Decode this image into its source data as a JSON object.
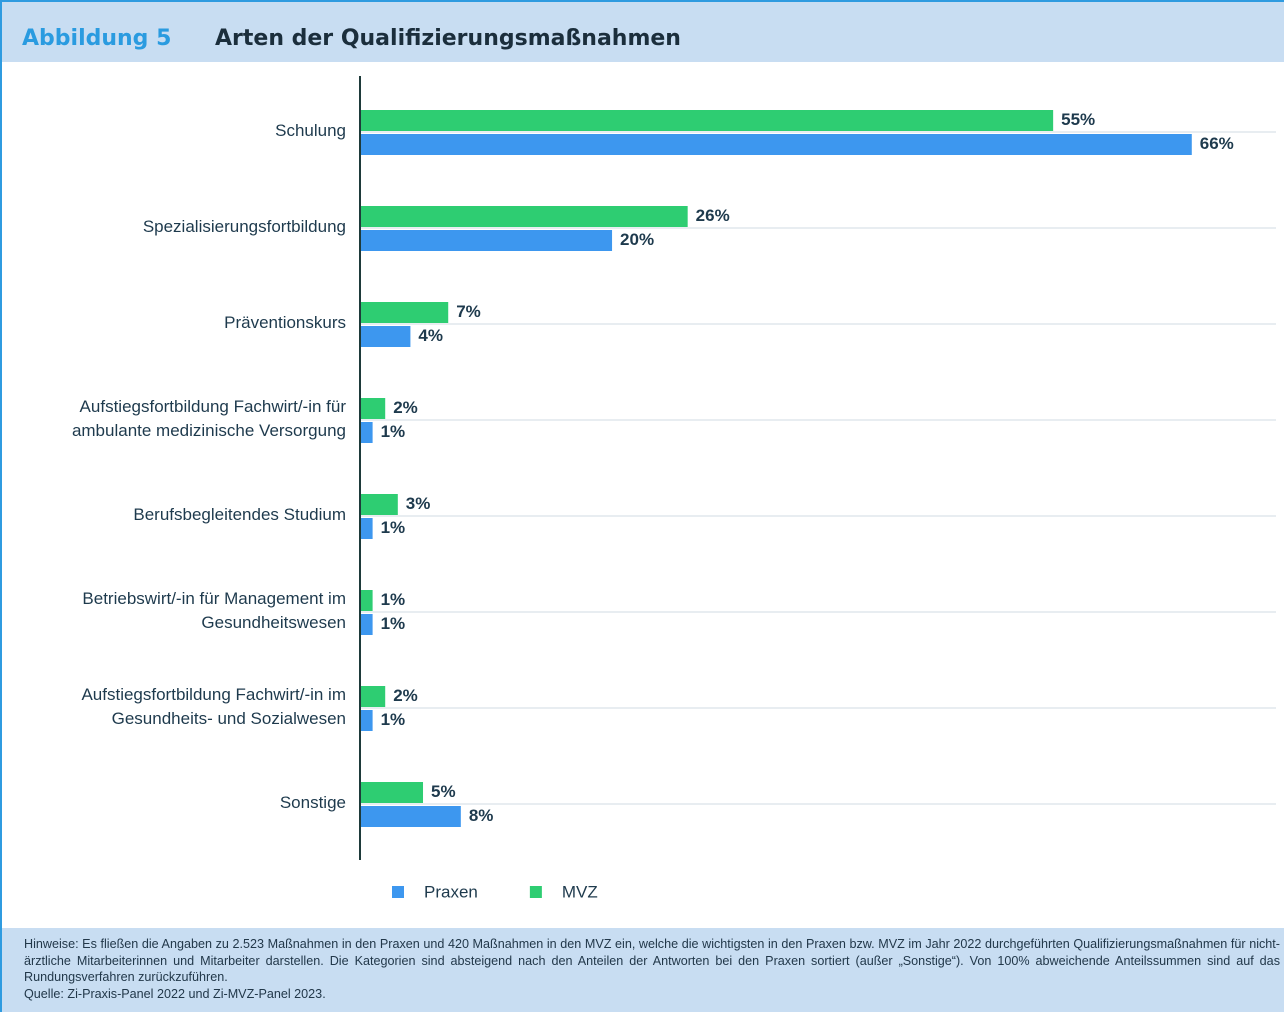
{
  "chart_data": {
    "type": "barh",
    "label": "Abbildung 5",
    "title": "Arten der Qualifizierungsmaßnahmen",
    "categories": [
      "Schulung",
      "Spezialisierungsfortbildung",
      "Präventionskurs",
      "Aufstiegsfortbildung Fachwirt/-in für ambulante medizinische Versorgung",
      "Berufsbegleitendes Studium",
      "Betriebswirt/-in für Management im Gesundheitswesen",
      "Aufstiegsfortbildung Fachwirt/-in im Gesundheits- und Sozialwesen",
      "Sonstige"
    ],
    "series": [
      {
        "name": "Praxen",
        "color": "#3d97ef",
        "values": [
          66,
          20,
          4,
          1,
          1,
          1,
          1,
          8
        ],
        "value_labels": [
          "66%",
          "20%",
          "4%",
          "1%",
          "1%",
          "1%",
          "1%",
          "8%"
        ]
      },
      {
        "name": "MVZ",
        "color": "#2ecd72",
        "values": [
          55,
          26,
          7,
          2,
          3,
          1,
          2,
          5
        ],
        "value_labels": [
          "55%",
          "26%",
          "7%",
          "2%",
          "3%",
          "1%",
          "2%",
          "5%"
        ]
      }
    ],
    "xlim": [
      0,
      73
    ],
    "grid": true,
    "legend": "bottom",
    "note": "Hinweise: Es fließen die Angaben zu 2.523 Maßnahmen in den Praxen und 420 Maßnahmen in den MVZ ein, welche die wichtigsten in den Praxen bzw. MVZ im Jahr 2022 durchgeführten Qualifizierungsmaßnahmen für nicht-ärztliche Mitarbeiterinnen und Mitarbeiter darstellen. Die Kategorien sind absteigend nach den Anteilen der Antworten bei den Praxen sortiert (außer „Sonstige“). Von 100% abweichende Anteilssummen sind auf das Rundungsverfahren zurückzuführen.",
    "source": "Quelle: Zi-Praxis-Panel 2022 und Zi-MVZ-Panel 2023."
  }
}
